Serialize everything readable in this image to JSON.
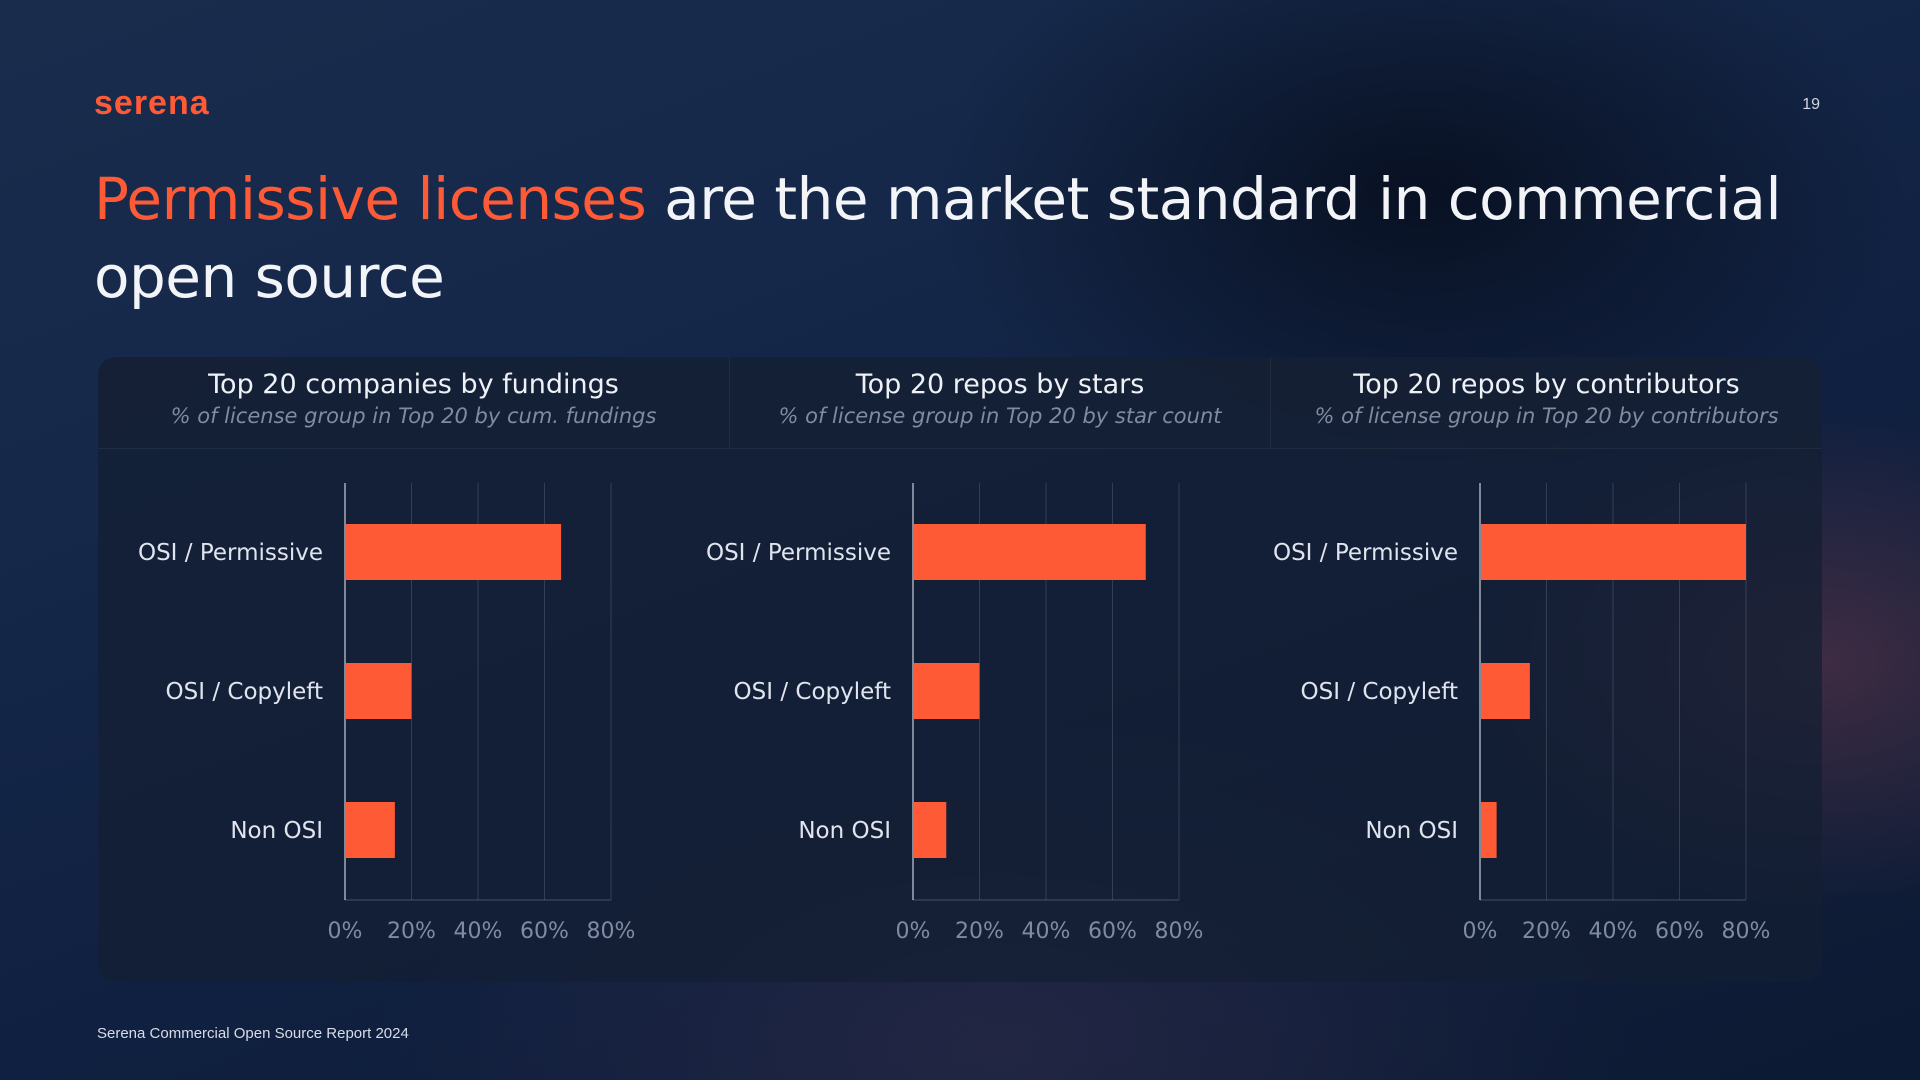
{
  "brand": {
    "logo_text": "serena",
    "accent": "#ff5a36"
  },
  "page_number": "19",
  "headline": {
    "highlight": "Permissive licenses",
    "rest": " are the market standard in commercial open source"
  },
  "footer": "Serena Commercial Open Source Report 2024",
  "chart_data": [
    {
      "type": "bar",
      "orientation": "horizontal",
      "title": "Top 20 companies by fundings",
      "subtitle": "% of license group in Top 20 by cum. fundings",
      "categories": [
        "OSI / Permissive",
        "OSI / Copyleft",
        "Non OSI"
      ],
      "values": [
        65,
        20,
        15
      ],
      "xlim": [
        0,
        80
      ],
      "xticks": [
        "0%",
        "20%",
        "40%",
        "60%",
        "80%"
      ],
      "grid": true,
      "color": "#ff5a36"
    },
    {
      "type": "bar",
      "orientation": "horizontal",
      "title": "Top 20 repos by stars",
      "subtitle": "% of license group in Top 20 by star count",
      "categories": [
        "OSI / Permissive",
        "OSI / Copyleft",
        "Non OSI"
      ],
      "values": [
        70,
        20,
        10
      ],
      "xlim": [
        0,
        80
      ],
      "xticks": [
        "0%",
        "20%",
        "40%",
        "60%",
        "80%"
      ],
      "grid": true,
      "color": "#ff5a36"
    },
    {
      "type": "bar",
      "orientation": "horizontal",
      "title": "Top 20 repos by contributors",
      "subtitle": "% of license group in Top 20 by contributors",
      "categories": [
        "OSI / Permissive",
        "OSI / Copyleft",
        "Non OSI"
      ],
      "values": [
        80,
        15,
        5
      ],
      "xlim": [
        0,
        80
      ],
      "xticks": [
        "0%",
        "20%",
        "40%",
        "60%",
        "80%"
      ],
      "grid": true,
      "color": "#ff5a36"
    }
  ]
}
